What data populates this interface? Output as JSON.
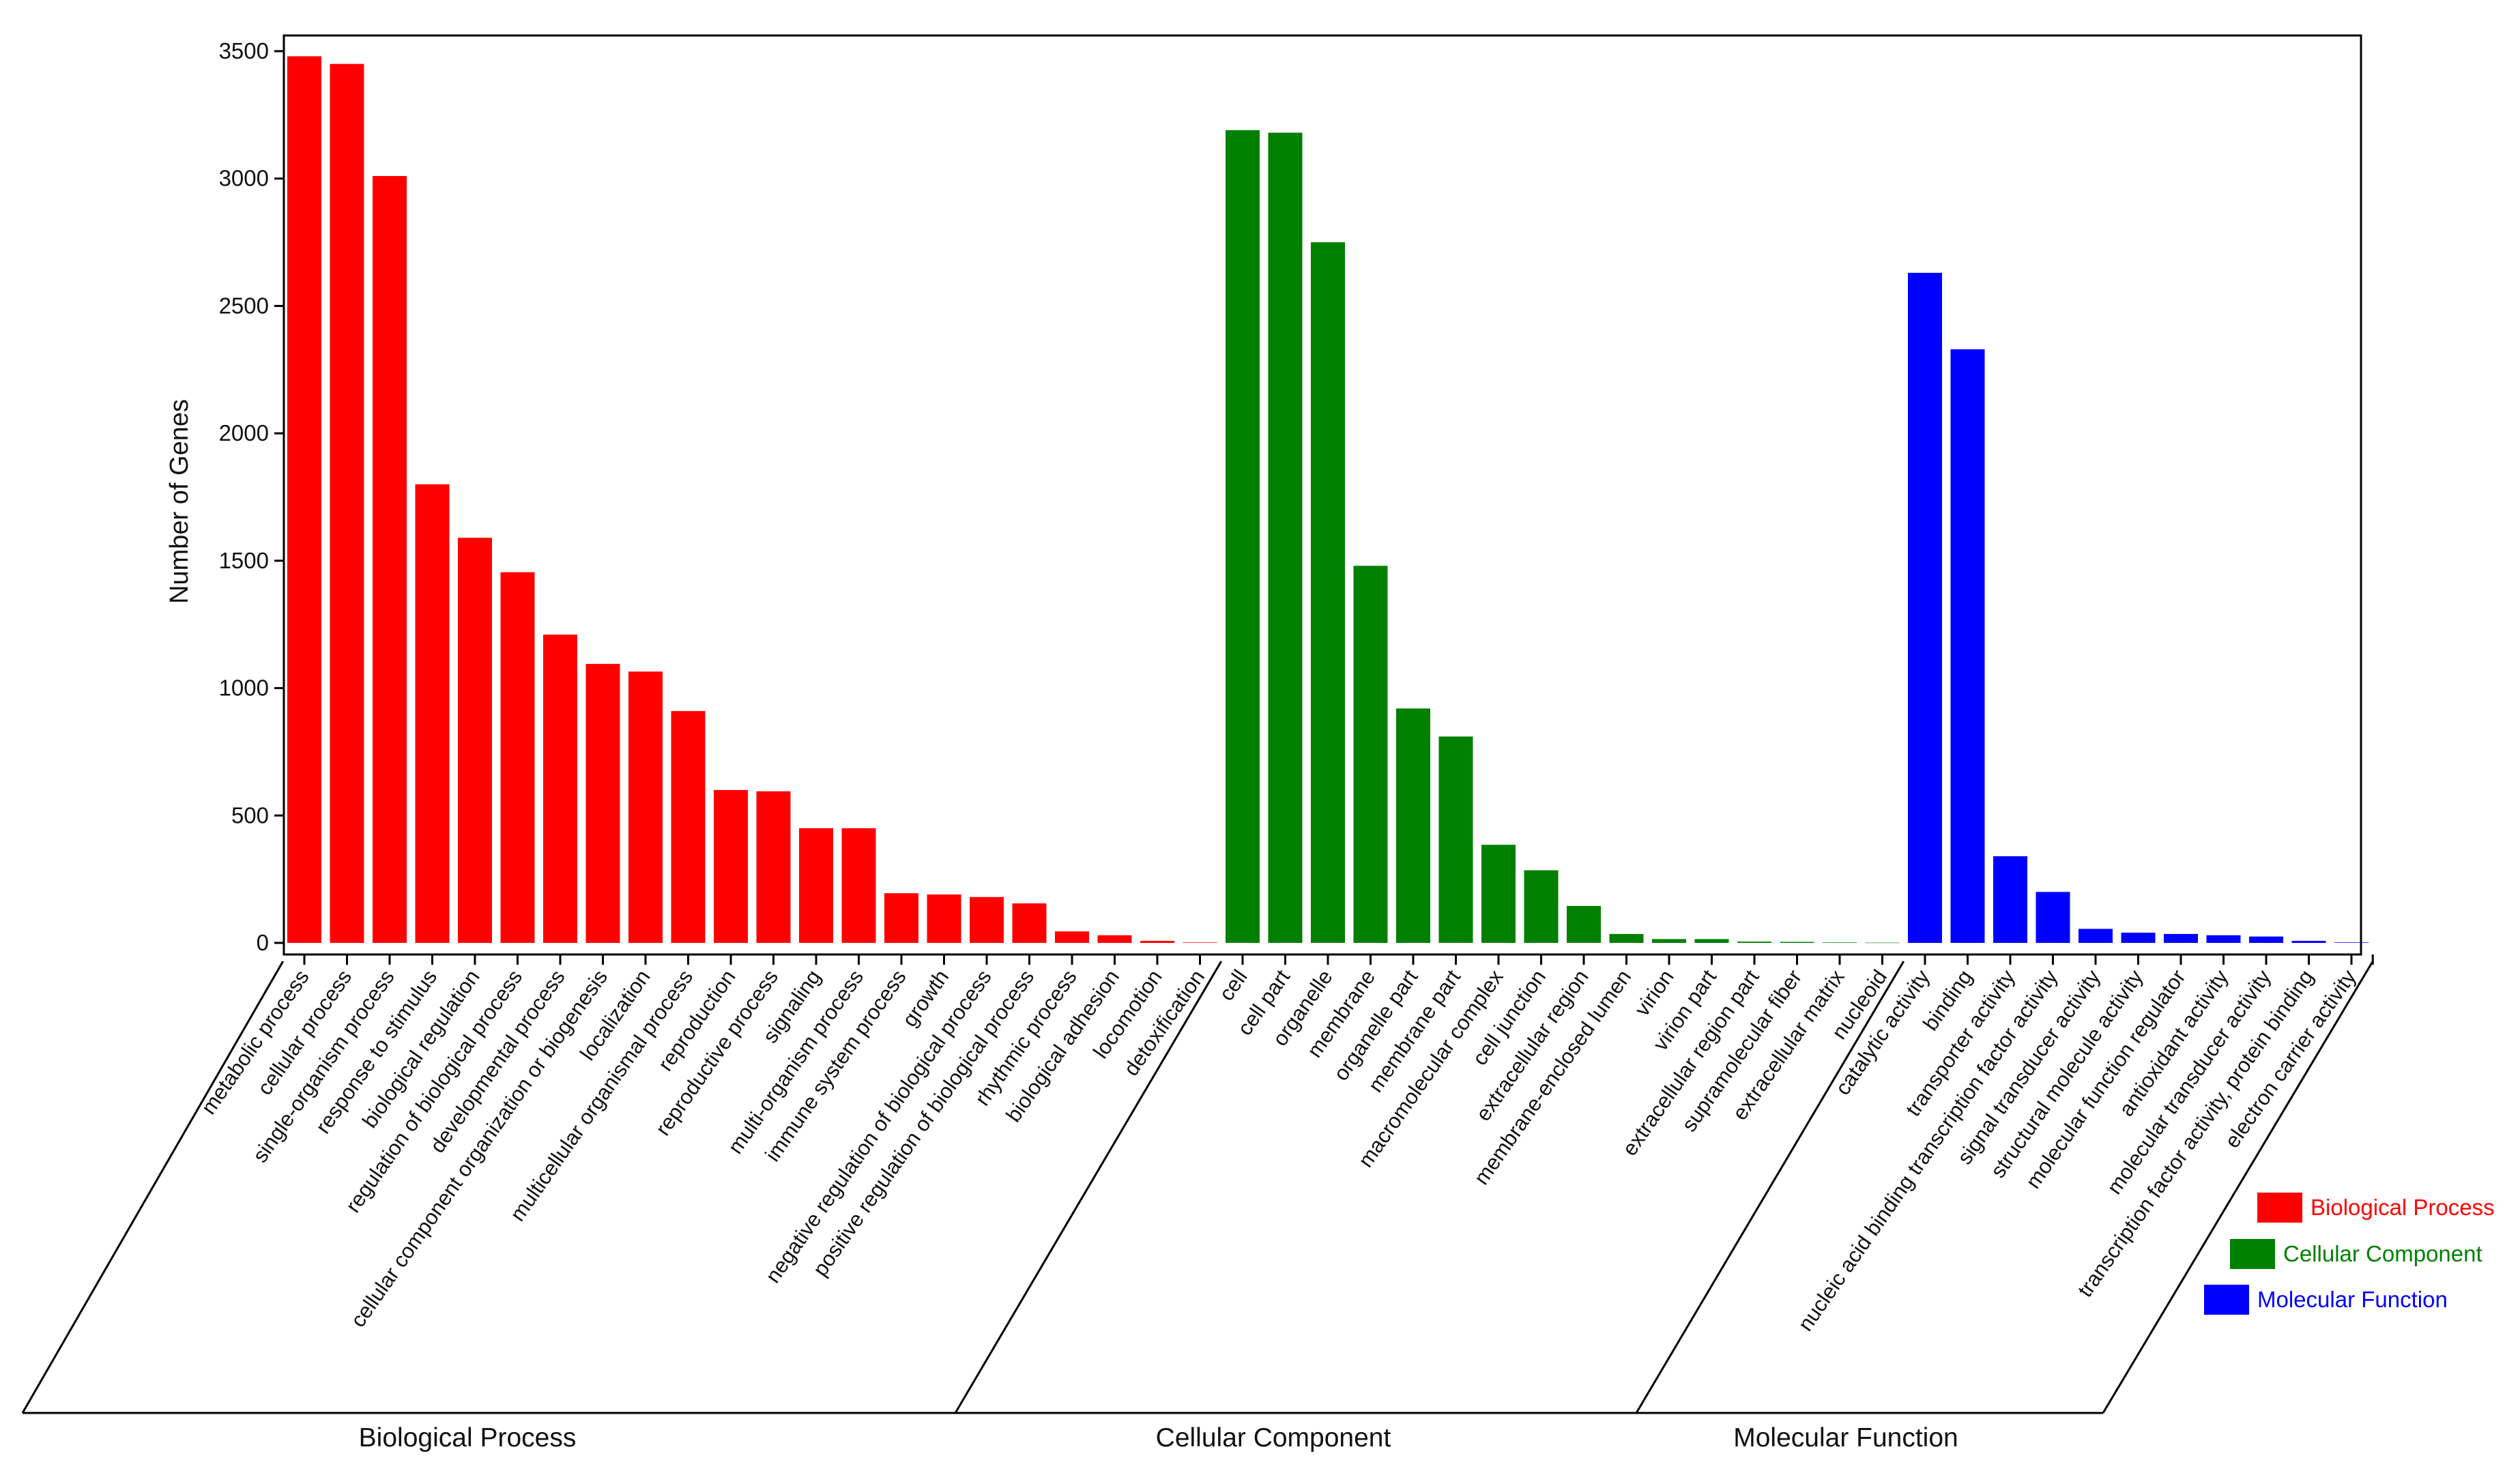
{
  "chart_data": {
    "type": "bar",
    "ylabel": "Number of Genes",
    "xlabel": "",
    "ylim": [
      0,
      3500
    ],
    "yticks": [
      0,
      500,
      1000,
      1500,
      2000,
      2500,
      3000,
      3500
    ],
    "grid": false,
    "legend_position": "bottom-right",
    "groups": [
      {
        "name": "Biological Process",
        "color": "#ff0000",
        "categories": [
          "metabolic process",
          "cellular process",
          "single-organism process",
          "response to stimulus",
          "biological regulation",
          "regulation of biological process",
          "developmental process",
          "cellular component organization or biogenesis",
          "localization",
          "multicellular organismal process",
          "reproduction",
          "reproductive process",
          "signaling",
          "multi-organism process",
          "immune system process",
          "growth",
          "negative regulation of biological process",
          "positive regulation of biological process",
          "rhythmic process",
          "biological adhesion",
          "locomotion",
          "detoxification"
        ],
        "values": [
          3480,
          3450,
          3010,
          1800,
          1590,
          1455,
          1210,
          1095,
          1065,
          910,
          600,
          595,
          450,
          450,
          195,
          190,
          180,
          155,
          45,
          30,
          8,
          2
        ]
      },
      {
        "name": "Cellular Component",
        "color": "#008000",
        "categories": [
          "cell",
          "cell part",
          "organelle",
          "membrane",
          "organelle part",
          "membrane part",
          "macromolecular complex",
          "cell junction",
          "extracellular region",
          "membrane-enclosed lumen",
          "virion",
          "virion part",
          "extracellular region part",
          "supramolecular fiber",
          "extracellular matrix",
          "nucleoid"
        ],
        "values": [
          3190,
          3180,
          2750,
          1480,
          920,
          810,
          385,
          285,
          145,
          35,
          15,
          15,
          5,
          4,
          2,
          1
        ]
      },
      {
        "name": "Molecular Function",
        "color": "#0000ff",
        "categories": [
          "catalytic activity",
          "binding",
          "transporter activity",
          "nucleic acid binding transcription factor activity",
          "signal transducer activity",
          "structural molecule activity",
          "molecular function regulator",
          "antioxidant activity",
          "molecular transducer activity",
          "transcription factor activity, protein binding",
          "electron carrier activity"
        ],
        "values": [
          2630,
          2330,
          340,
          200,
          55,
          40,
          35,
          30,
          25,
          8,
          2
        ]
      }
    ]
  }
}
